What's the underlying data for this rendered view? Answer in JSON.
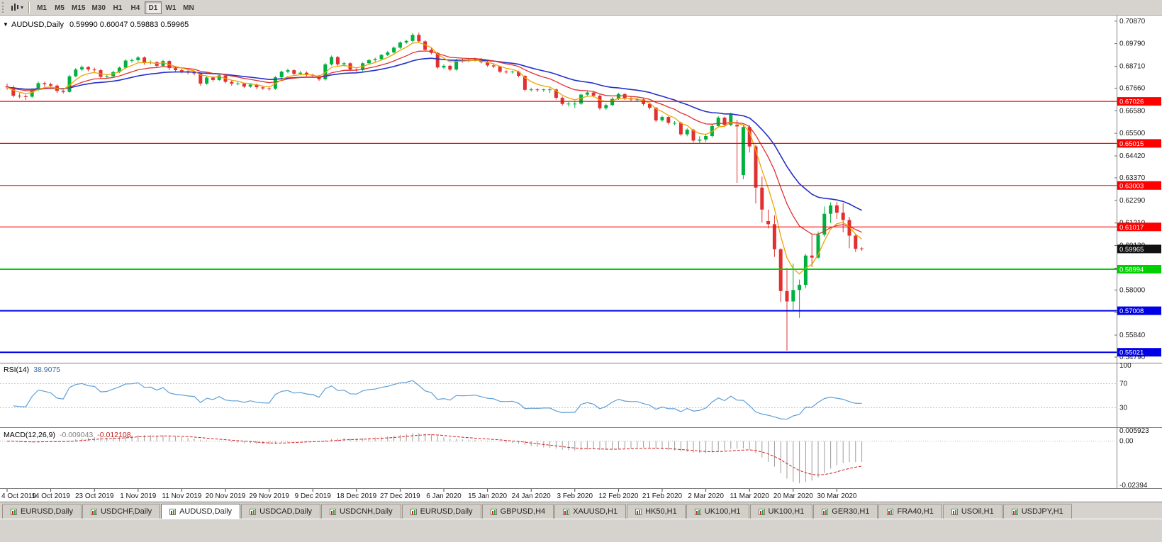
{
  "toolbar": {
    "timeframes": [
      "M1",
      "M5",
      "M15",
      "M30",
      "H1",
      "H4",
      "D1",
      "W1",
      "MN"
    ],
    "active_timeframe": "D1"
  },
  "chart": {
    "title": "AUDUSD,Daily",
    "ohlc_display": "0.59990 0.60047 0.59883 0.59965",
    "icons": {
      "collapse": "▼",
      "dropdown": "▾"
    }
  },
  "chart_data": {
    "type": "candlestick",
    "symbol": "AUDUSD",
    "period": "Daily",
    "current": {
      "open": 0.5999,
      "high": 0.60047,
      "low": 0.59883,
      "close": 0.59965
    },
    "colors": {
      "up": "#00B140",
      "down": "#E03030"
    },
    "label_step": 7,
    "x_labels": [
      "4 Oct 2019",
      "14 Oct 2019",
      "23 Oct 2019",
      "1 Nov 2019",
      "11 Nov 2019",
      "20 Nov 2019",
      "29 Nov 2019",
      "9 Dec 2019",
      "18 Dec 2019",
      "27 Dec 2019",
      "6 Jan 2020",
      "15 Jan 2020",
      "24 Jan 2020",
      "3 Feb 2020",
      "12 Feb 2020",
      "21 Feb 2020",
      "2 Mar 2020",
      "11 Mar 2020",
      "20 Mar 2020",
      "30 Mar 2020"
    ],
    "price_axis_ticks": [
      "0.70870",
      "0.69790",
      "0.68710",
      "0.67660",
      "0.66580",
      "0.65500",
      "0.64420",
      "0.63370",
      "0.62290",
      "0.61210",
      "0.60130",
      "0.59050",
      "0.58000",
      "0.56920",
      "0.55840",
      "0.54790"
    ],
    "hlines": [
      {
        "price": 0.67026,
        "label": "0.67026",
        "color": "#FF0000",
        "width": 1.2
      },
      {
        "price": 0.65015,
        "label": "0.65015",
        "color": "#FF0000",
        "width": 1.2
      },
      {
        "price": 0.63003,
        "label": "0.63003",
        "color": "#FF0000",
        "width": 1.2
      },
      {
        "price": 0.61017,
        "label": "0.61017",
        "color": "#FF0000",
        "width": 1.2
      },
      {
        "price": 0.58994,
        "label": "0.58994",
        "color": "#00D000",
        "width": 2
      },
      {
        "price": 0.57008,
        "label": "0.57008",
        "color": "#0000E6",
        "width": 2
      },
      {
        "price": 0.55021,
        "label": "0.55021",
        "color": "#0000E6",
        "width": 2
      }
    ],
    "current_price_tag": {
      "price": 0.59965,
      "label": "0.59965",
      "bg": "#111111"
    },
    "moving_averages": [
      {
        "name": "slow-ma",
        "period": 26,
        "color": "#2430C8",
        "width": 1.6
      },
      {
        "name": "medium-ma",
        "period": 13,
        "color": "#E03030",
        "width": 1.3
      },
      {
        "name": "fast-ma",
        "period": 5,
        "color": "#EFA300",
        "width": 1.3
      }
    ],
    "rsi": {
      "label": "RSI(14)",
      "value_display": "38.9075",
      "period": 14,
      "levels": [
        70,
        30
      ],
      "axis": [
        100,
        70,
        30
      ],
      "color": "#5F9FD6"
    },
    "macd": {
      "label": "MACD(12,26,9)",
      "macd_value_display": "-0.009043",
      "signal_value_display": "-0.012108",
      "fast": 12,
      "slow": 26,
      "signal": 9,
      "axis_labels": [
        "0.005923",
        "0.00",
        "-0.02394"
      ],
      "scale_max": 0.005923,
      "scale_min": -0.02394,
      "histogram_color": "#9B9B9B",
      "signal_color": "#D02020"
    },
    "candles": [
      [
        0.6775,
        0.6788,
        0.6758,
        0.677
      ],
      [
        0.677,
        0.6779,
        0.6722,
        0.673
      ],
      [
        0.673,
        0.6742,
        0.6718,
        0.6727
      ],
      [
        0.6727,
        0.6736,
        0.671,
        0.6725
      ],
      [
        0.6725,
        0.6765,
        0.672,
        0.6758
      ],
      [
        0.6758,
        0.6798,
        0.6752,
        0.679
      ],
      [
        0.679,
        0.6797,
        0.6772,
        0.6785
      ],
      [
        0.6785,
        0.6792,
        0.6768,
        0.6778
      ],
      [
        0.6778,
        0.6784,
        0.6742,
        0.6753
      ],
      [
        0.6753,
        0.6762,
        0.674,
        0.6748
      ],
      [
        0.6748,
        0.683,
        0.6744,
        0.6823
      ],
      [
        0.6823,
        0.6862,
        0.6818,
        0.6855
      ],
      [
        0.6855,
        0.6875,
        0.6848,
        0.6867
      ],
      [
        0.6867,
        0.6872,
        0.6846,
        0.6855
      ],
      [
        0.6855,
        0.6864,
        0.6844,
        0.6852
      ],
      [
        0.6852,
        0.6858,
        0.6812,
        0.682
      ],
      [
        0.682,
        0.6832,
        0.681,
        0.6823
      ],
      [
        0.6823,
        0.685,
        0.6818,
        0.6843
      ],
      [
        0.6843,
        0.687,
        0.6838,
        0.6864
      ],
      [
        0.6864,
        0.6905,
        0.6858,
        0.6898
      ],
      [
        0.6898,
        0.6908,
        0.6888,
        0.69
      ],
      [
        0.69,
        0.692,
        0.6892,
        0.6913
      ],
      [
        0.6913,
        0.6918,
        0.6878,
        0.6888
      ],
      [
        0.6888,
        0.6898,
        0.688,
        0.689
      ],
      [
        0.689,
        0.6896,
        0.6862,
        0.6873
      ],
      [
        0.6873,
        0.6902,
        0.6866,
        0.6896
      ],
      [
        0.6896,
        0.69,
        0.6852,
        0.6862
      ],
      [
        0.6862,
        0.687,
        0.6842,
        0.6852
      ],
      [
        0.6852,
        0.6859,
        0.6838,
        0.6847
      ],
      [
        0.6847,
        0.6853,
        0.6832,
        0.684
      ],
      [
        0.684,
        0.6848,
        0.6828,
        0.6837
      ],
      [
        0.6837,
        0.684,
        0.6778,
        0.6788
      ],
      [
        0.6788,
        0.6822,
        0.6782,
        0.6817
      ],
      [
        0.6817,
        0.6823,
        0.6796,
        0.6805
      ],
      [
        0.6805,
        0.6833,
        0.68,
        0.6827
      ],
      [
        0.6827,
        0.6832,
        0.679,
        0.6796
      ],
      [
        0.6796,
        0.6803,
        0.6778,
        0.6788
      ],
      [
        0.6788,
        0.6796,
        0.678,
        0.6788
      ],
      [
        0.6788,
        0.6792,
        0.6766,
        0.6773
      ],
      [
        0.6773,
        0.679,
        0.6768,
        0.6783
      ],
      [
        0.6783,
        0.6788,
        0.6762,
        0.677
      ],
      [
        0.677,
        0.6776,
        0.6758,
        0.6765
      ],
      [
        0.6765,
        0.677,
        0.6754,
        0.6763
      ],
      [
        0.6763,
        0.6824,
        0.6758,
        0.6818
      ],
      [
        0.6818,
        0.685,
        0.6812,
        0.6845
      ],
      [
        0.6845,
        0.686,
        0.6838,
        0.6852
      ],
      [
        0.6852,
        0.6856,
        0.6828,
        0.6835
      ],
      [
        0.6835,
        0.6848,
        0.6828,
        0.684
      ],
      [
        0.684,
        0.6846,
        0.6822,
        0.683
      ],
      [
        0.683,
        0.6836,
        0.6818,
        0.6826
      ],
      [
        0.6826,
        0.683,
        0.68,
        0.6808
      ],
      [
        0.6808,
        0.6886,
        0.6802,
        0.688
      ],
      [
        0.688,
        0.6922,
        0.6874,
        0.6915
      ],
      [
        0.6915,
        0.692,
        0.6872,
        0.688
      ],
      [
        0.688,
        0.6892,
        0.687,
        0.6885
      ],
      [
        0.6885,
        0.689,
        0.6848,
        0.6855
      ],
      [
        0.6855,
        0.6862,
        0.6844,
        0.6852
      ],
      [
        0.6852,
        0.689,
        0.6846,
        0.6885
      ],
      [
        0.6885,
        0.6906,
        0.688,
        0.69
      ],
      [
        0.69,
        0.6912,
        0.6892,
        0.6905
      ],
      [
        0.6905,
        0.693,
        0.6898,
        0.6925
      ],
      [
        0.6925,
        0.6944,
        0.692,
        0.6937
      ],
      [
        0.6937,
        0.6966,
        0.6932,
        0.696
      ],
      [
        0.696,
        0.699,
        0.6954,
        0.6985
      ],
      [
        0.6985,
        0.6998,
        0.6978,
        0.6992
      ],
      [
        0.6992,
        0.703,
        0.6986,
        0.7021
      ],
      [
        0.7021,
        0.7032,
        0.6982,
        0.699
      ],
      [
        0.699,
        0.6996,
        0.6942,
        0.695
      ],
      [
        0.695,
        0.6958,
        0.6928,
        0.6935
      ],
      [
        0.6935,
        0.694,
        0.6858,
        0.6865
      ],
      [
        0.6865,
        0.688,
        0.6858,
        0.6873
      ],
      [
        0.6873,
        0.6878,
        0.6848,
        0.6855
      ],
      [
        0.6855,
        0.6906,
        0.685,
        0.69
      ],
      [
        0.69,
        0.6906,
        0.6888,
        0.6898
      ],
      [
        0.6898,
        0.6908,
        0.689,
        0.69
      ],
      [
        0.69,
        0.6912,
        0.6894,
        0.6905
      ],
      [
        0.6905,
        0.691,
        0.6884,
        0.689
      ],
      [
        0.689,
        0.6896,
        0.6868,
        0.6875
      ],
      [
        0.6875,
        0.6882,
        0.6862,
        0.687
      ],
      [
        0.687,
        0.6874,
        0.6838,
        0.6845
      ],
      [
        0.6845,
        0.6852,
        0.6836,
        0.6843
      ],
      [
        0.6843,
        0.685,
        0.6836,
        0.6845
      ],
      [
        0.6845,
        0.685,
        0.6818,
        0.6825
      ],
      [
        0.6825,
        0.6828,
        0.675,
        0.6758
      ],
      [
        0.6758,
        0.6768,
        0.675,
        0.676
      ],
      [
        0.676,
        0.6766,
        0.6748,
        0.6758
      ],
      [
        0.6758,
        0.6764,
        0.6748,
        0.676
      ],
      [
        0.676,
        0.6766,
        0.6742,
        0.676
      ],
      [
        0.676,
        0.6764,
        0.6712,
        0.672
      ],
      [
        0.672,
        0.6726,
        0.6682,
        0.669
      ],
      [
        0.669,
        0.67,
        0.6678,
        0.6692
      ],
      [
        0.6692,
        0.6702,
        0.667,
        0.6692
      ],
      [
        0.6692,
        0.674,
        0.6686,
        0.6735
      ],
      [
        0.6735,
        0.6752,
        0.6728,
        0.6745
      ],
      [
        0.6745,
        0.675,
        0.6722,
        0.673
      ],
      [
        0.673,
        0.6736,
        0.6662,
        0.667
      ],
      [
        0.667,
        0.6692,
        0.6662,
        0.6685
      ],
      [
        0.6685,
        0.6722,
        0.668,
        0.6715
      ],
      [
        0.6715,
        0.6744,
        0.671,
        0.6738
      ],
      [
        0.6738,
        0.6742,
        0.671,
        0.6718
      ],
      [
        0.6718,
        0.6726,
        0.6704,
        0.6712
      ],
      [
        0.6712,
        0.672,
        0.67,
        0.6712
      ],
      [
        0.6712,
        0.6716,
        0.6682,
        0.669
      ],
      [
        0.669,
        0.6696,
        0.6664,
        0.6672
      ],
      [
        0.6672,
        0.6676,
        0.6604,
        0.6612
      ],
      [
        0.6612,
        0.6634,
        0.6606,
        0.6628
      ],
      [
        0.6628,
        0.6632,
        0.6592,
        0.66
      ],
      [
        0.66,
        0.6608,
        0.6588,
        0.66
      ],
      [
        0.66,
        0.6606,
        0.6538,
        0.6545
      ],
      [
        0.6545,
        0.6574,
        0.6536,
        0.6567
      ],
      [
        0.6567,
        0.6572,
        0.6506,
        0.6515
      ],
      [
        0.6515,
        0.6536,
        0.65,
        0.652
      ],
      [
        0.652,
        0.6548,
        0.6508,
        0.6537
      ],
      [
        0.6537,
        0.6596,
        0.653,
        0.6585
      ],
      [
        0.6585,
        0.6632,
        0.6578,
        0.6625
      ],
      [
        0.6625,
        0.663,
        0.6582,
        0.659
      ],
      [
        0.659,
        0.6648,
        0.6584,
        0.664
      ],
      [
        0.659,
        0.6615,
        0.6313,
        0.6583
      ],
      [
        0.635,
        0.659,
        0.633,
        0.658
      ],
      [
        0.658,
        0.6588,
        0.6458,
        0.6487
      ],
      [
        0.6487,
        0.6495,
        0.6214,
        0.629
      ],
      [
        0.629,
        0.6343,
        0.6123,
        0.6185
      ],
      [
        0.613,
        0.6185,
        0.6095,
        0.6115
      ],
      [
        0.6115,
        0.6157,
        0.5958,
        0.5995
      ],
      [
        0.5995,
        0.6,
        0.5743,
        0.5795
      ],
      [
        0.5795,
        0.5906,
        0.551,
        0.5745
      ],
      [
        0.5745,
        0.5927,
        0.57,
        0.58
      ],
      [
        0.58,
        0.585,
        0.5666,
        0.5825
      ],
      [
        0.5825,
        0.5973,
        0.5808,
        0.5965
      ],
      [
        0.5965,
        0.607,
        0.591,
        0.5955
      ],
      [
        0.5955,
        0.608,
        0.595,
        0.6065
      ],
      [
        0.6065,
        0.62,
        0.6055,
        0.6165
      ],
      [
        0.6165,
        0.622,
        0.612,
        0.6205
      ],
      [
        0.6205,
        0.6222,
        0.614,
        0.617
      ],
      [
        0.617,
        0.6215,
        0.6076,
        0.6135
      ],
      [
        0.6135,
        0.615,
        0.6,
        0.606
      ],
      [
        0.606,
        0.6067,
        0.5982,
        0.5997
      ],
      [
        0.5999,
        0.60047,
        0.59883,
        0.59965
      ]
    ]
  },
  "tabs": {
    "active_index": 2,
    "items": [
      "EURUSD,Daily",
      "USDCHF,Daily",
      "AUDUSD,Daily",
      "USDCAD,Daily",
      "USDCNH,Daily",
      "EURUSD,Daily",
      "GBPUSD,H4",
      "XAUUSD,H1",
      "HK50,H1",
      "UK100,H1",
      "UK100,H1",
      "GER30,H1",
      "FRA40,H1",
      "USOil,H1",
      "USDJPY,H1"
    ]
  }
}
